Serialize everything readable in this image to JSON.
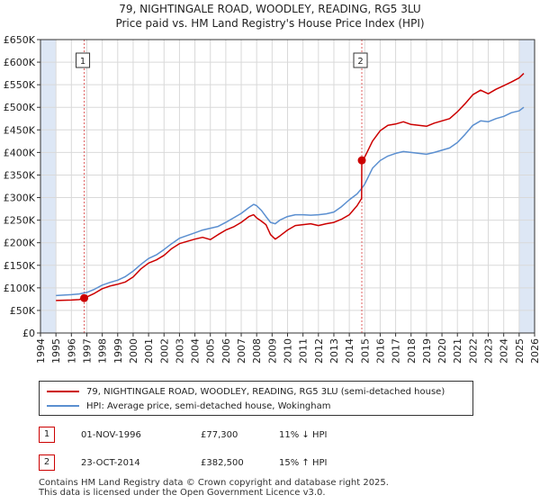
{
  "title_line1": "79, NIGHTINGALE ROAD, WOODLEY, READING, RG5 3LU",
  "title_line2": "Price paid vs. HM Land Registry's House Price Index (HPI)",
  "legend": {
    "property_label": "79, NIGHTINGALE ROAD, WOODLEY, READING, RG5 3LU (semi-detached house)",
    "hpi_label": "HPI: Average price, semi-detached house, Wokingham"
  },
  "transactions": [
    {
      "num": "1",
      "date": "01-NOV-1996",
      "price": "£77,300",
      "hpi_diff": "11% ↓ HPI"
    },
    {
      "num": "2",
      "date": "23-OCT-2014",
      "price": "£382,500",
      "hpi_diff": "15% ↑ HPI"
    }
  ],
  "footer": {
    "line1": "Contains HM Land Registry data © Crown copyright and database right 2025.",
    "line2": "This data is licensed under the Open Government Licence v3.0."
  },
  "colors": {
    "property": "#cc0000",
    "hpi": "#5b8fd0",
    "shade": "#dde7f5",
    "marker_line": "#e06060"
  },
  "chart_data": {
    "type": "line",
    "xlim": [
      1994,
      2026
    ],
    "ylim": [
      0,
      650000
    ],
    "x_ticks": [
      "1994",
      "1995",
      "1996",
      "1997",
      "1998",
      "1999",
      "2000",
      "2001",
      "2002",
      "2003",
      "2004",
      "2005",
      "2006",
      "2007",
      "2008",
      "2009",
      "2010",
      "2011",
      "2012",
      "2013",
      "2014",
      "2015",
      "2016",
      "2017",
      "2018",
      "2019",
      "2020",
      "2021",
      "2022",
      "2023",
      "2024",
      "2025",
      "2026"
    ],
    "y_ticks": [
      {
        "value": 0,
        "label": "£0"
      },
      {
        "value": 50000,
        "label": "£50K"
      },
      {
        "value": 100000,
        "label": "£100K"
      },
      {
        "value": 150000,
        "label": "£150K"
      },
      {
        "value": 200000,
        "label": "£200K"
      },
      {
        "value": 250000,
        "label": "£250K"
      },
      {
        "value": 300000,
        "label": "£300K"
      },
      {
        "value": 350000,
        "label": "£350K"
      },
      {
        "value": 400000,
        "label": "£400K"
      },
      {
        "value": 450000,
        "label": "£450K"
      },
      {
        "value": 500000,
        "label": "£500K"
      },
      {
        "value": 550000,
        "label": "£550K"
      },
      {
        "value": 600000,
        "label": "£600K"
      },
      {
        "value": 650000,
        "label": "£650K"
      }
    ],
    "shaded_regions": [
      [
        1994,
        1995
      ],
      [
        2025,
        2026
      ]
    ],
    "markers": [
      {
        "label": "1",
        "x": 1996.83,
        "y": 77300
      },
      {
        "label": "2",
        "x": 2014.81,
        "y": 382500
      }
    ],
    "series": [
      {
        "name": "79, NIGHTINGALE ROAD, WOODLEY, READING, RG5 3LU (semi-detached house)",
        "x": [
          1995.0,
          1995.5,
          1996.0,
          1996.5,
          1996.83,
          1997.0,
          1997.5,
          1998.0,
          1998.5,
          1999.0,
          1999.5,
          2000.0,
          2000.5,
          2001.0,
          2001.5,
          2002.0,
          2002.5,
          2003.0,
          2003.5,
          2004.0,
          2004.5,
          2005.0,
          2005.5,
          2006.0,
          2006.5,
          2007.0,
          2007.5,
          2007.8,
          2008.0,
          2008.3,
          2008.6,
          2008.9,
          2009.2,
          2009.5,
          2010.0,
          2010.5,
          2011.0,
          2011.5,
          2012.0,
          2012.5,
          2013.0,
          2013.5,
          2014.0,
          2014.5,
          2014.8,
          2014.81,
          2015.0,
          2015.5,
          2016.0,
          2016.5,
          2017.0,
          2017.5,
          2018.0,
          2018.5,
          2019.0,
          2019.5,
          2020.0,
          2020.5,
          2021.0,
          2021.5,
          2022.0,
          2022.5,
          2023.0,
          2023.5,
          2024.0,
          2024.5,
          2025.0,
          2025.3
        ],
        "y": [
          72000,
          72500,
          73000,
          74000,
          77300,
          80000,
          88000,
          98000,
          104000,
          108000,
          113000,
          124000,
          142000,
          155000,
          162000,
          172000,
          187000,
          198000,
          203000,
          208000,
          212000,
          207000,
          218000,
          228000,
          235000,
          245000,
          258000,
          262000,
          255000,
          248000,
          240000,
          218000,
          208000,
          215000,
          228000,
          238000,
          240000,
          242000,
          238000,
          242000,
          245000,
          252000,
          262000,
          282000,
          298000,
          382500,
          390000,
          425000,
          448000,
          460000,
          463000,
          468000,
          462000,
          460000,
          458000,
          465000,
          470000,
          475000,
          490000,
          508000,
          528000,
          538000,
          530000,
          540000,
          548000,
          556000,
          565000,
          575000
        ]
      },
      {
        "name": "HPI: Average price, semi-detached house, Wokingham",
        "x": [
          1995.0,
          1995.5,
          1996.0,
          1996.5,
          1997.0,
          1997.5,
          1998.0,
          1998.5,
          1999.0,
          1999.5,
          2000.0,
          2000.5,
          2001.0,
          2001.5,
          2002.0,
          2002.5,
          2003.0,
          2003.5,
          2004.0,
          2004.5,
          2005.0,
          2005.5,
          2006.0,
          2006.5,
          2007.0,
          2007.5,
          2007.8,
          2008.0,
          2008.3,
          2008.6,
          2008.9,
          2009.2,
          2009.5,
          2010.0,
          2010.5,
          2011.0,
          2011.5,
          2012.0,
          2012.5,
          2013.0,
          2013.5,
          2014.0,
          2014.5,
          2014.8,
          2015.0,
          2015.5,
          2016.0,
          2016.5,
          2017.0,
          2017.5,
          2018.0,
          2018.5,
          2019.0,
          2019.5,
          2020.0,
          2020.5,
          2021.0,
          2021.5,
          2022.0,
          2022.5,
          2023.0,
          2023.5,
          2024.0,
          2024.5,
          2025.0,
          2025.3
        ],
        "y": [
          83000,
          84000,
          85000,
          86500,
          90000,
          97000,
          106000,
          112000,
          117000,
          125000,
          137000,
          152000,
          165000,
          173000,
          185000,
          198000,
          210000,
          216000,
          222000,
          228000,
          232000,
          236000,
          245000,
          255000,
          265000,
          278000,
          285000,
          282000,
          272000,
          258000,
          245000,
          242000,
          250000,
          258000,
          262000,
          262000,
          261000,
          262000,
          264000,
          268000,
          280000,
          295000,
          308000,
          320000,
          330000,
          365000,
          382000,
          392000,
          398000,
          402000,
          400000,
          398000,
          396000,
          400000,
          405000,
          410000,
          422000,
          440000,
          460000,
          470000,
          468000,
          475000,
          480000,
          488000,
          492000,
          500000
        ]
      }
    ]
  }
}
